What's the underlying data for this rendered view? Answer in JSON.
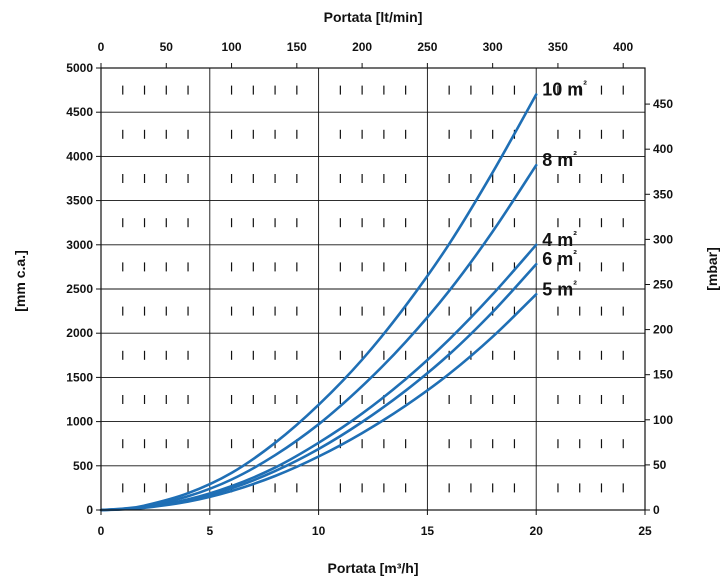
{
  "chart_data": {
    "type": "line",
    "title": "",
    "xlabel": "Portata [m³/h]",
    "x2label": "Portata [lt/min]",
    "ylabel": "[mm c.a.]",
    "y2label": "[mbar]",
    "xlim": [
      0,
      25
    ],
    "x2lim": [
      0,
      416.7
    ],
    "ylim": [
      0,
      5000
    ],
    "y2lim": [
      0,
      490
    ],
    "x_ticks": [
      0,
      5,
      10,
      15,
      20,
      25
    ],
    "x2_ticks": [
      0,
      50,
      100,
      150,
      200,
      250,
      300,
      350,
      400
    ],
    "y_ticks": [
      0,
      500,
      1000,
      1500,
      2000,
      2500,
      3000,
      3500,
      4000,
      4500,
      5000
    ],
    "y2_ticks": [
      0,
      50,
      100,
      150,
      200,
      250,
      300,
      350,
      400,
      450
    ],
    "grid": true,
    "line_color": "#1f6fb5",
    "series": [
      {
        "name": "10 m²",
        "x": [
          0,
          1,
          2,
          4,
          6,
          8,
          10,
          12,
          14,
          16,
          18,
          20
        ],
        "values": [
          0,
          15,
          50,
          190,
          420,
          760,
          1190,
          1700,
          2310,
          3010,
          3820,
          4700
        ]
      },
      {
        "name": "8 m²",
        "x": [
          0,
          1,
          2,
          4,
          6,
          8,
          10,
          12,
          14,
          16,
          18,
          20
        ],
        "values": [
          0,
          12,
          40,
          155,
          345,
          620,
          970,
          1400,
          1900,
          2480,
          3150,
          3900
        ]
      },
      {
        "name": "4 m²",
        "x": [
          0,
          1,
          2,
          4,
          6,
          8,
          10,
          12,
          14,
          16,
          18,
          20
        ],
        "values": [
          0,
          10,
          32,
          120,
          270,
          480,
          760,
          1090,
          1480,
          1930,
          2440,
          3000
        ]
      },
      {
        "name": "6 m²",
        "x": [
          0,
          1,
          2,
          4,
          6,
          8,
          10,
          12,
          14,
          16,
          18,
          20
        ],
        "values": [
          0,
          9,
          29,
          110,
          245,
          440,
          690,
          995,
          1350,
          1760,
          2240,
          2780
        ]
      },
      {
        "name": "5 m²",
        "x": [
          0,
          1,
          2,
          4,
          6,
          8,
          10,
          12,
          14,
          16,
          18,
          20
        ],
        "values": [
          0,
          8,
          25,
          95,
          215,
          385,
          605,
          870,
          1180,
          1540,
          1960,
          2440
        ]
      }
    ]
  }
}
